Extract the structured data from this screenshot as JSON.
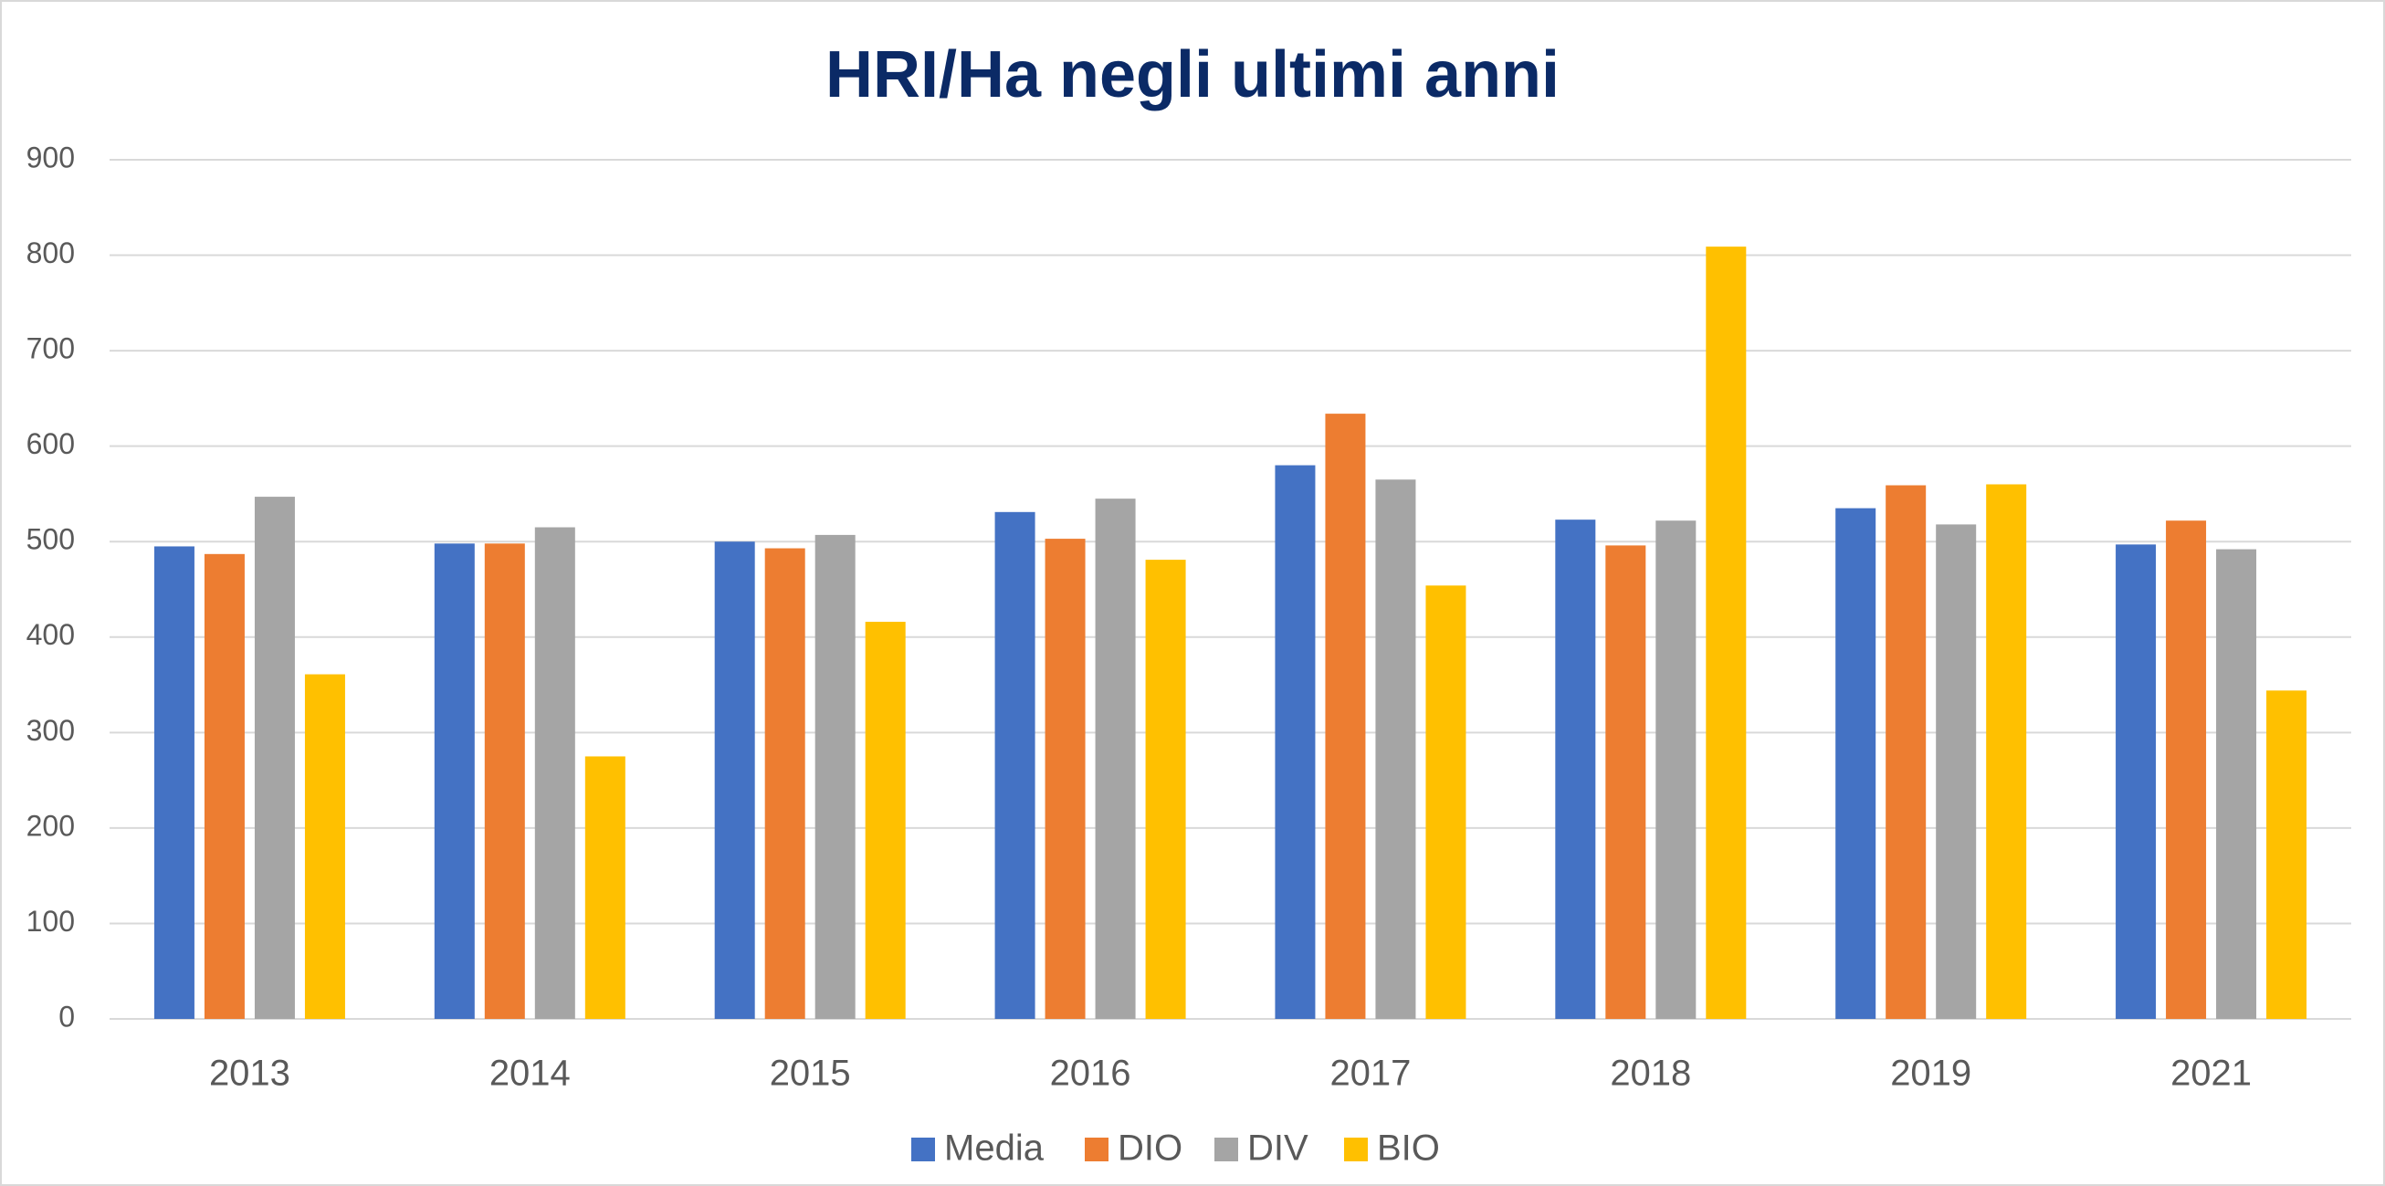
{
  "chart_data": {
    "type": "bar",
    "title": "HRI/Ha negli ultimi anni",
    "categories": [
      "2013",
      "2014",
      "2015",
      "2016",
      "2017",
      "2018",
      "2019",
      "2021"
    ],
    "series": [
      {
        "name": "Media",
        "color": "#4472c4",
        "values": [
          495,
          498,
          500,
          531,
          580,
          523,
          535,
          497
        ]
      },
      {
        "name": "DIO",
        "color": "#ed7d31",
        "values": [
          487,
          498,
          493,
          503,
          634,
          496,
          559,
          522
        ]
      },
      {
        "name": "DIV",
        "color": "#a5a5a5",
        "values": [
          547,
          515,
          507,
          545,
          565,
          522,
          518,
          492
        ]
      },
      {
        "name": "BIO",
        "color": "#ffc000",
        "values": [
          361,
          275,
          416,
          481,
          454,
          809,
          560,
          344
        ]
      }
    ],
    "ylim": [
      0,
      900
    ],
    "yticks": [
      0,
      100,
      200,
      300,
      400,
      500,
      600,
      700,
      800,
      900
    ],
    "grid": true,
    "legend": "bottom"
  }
}
